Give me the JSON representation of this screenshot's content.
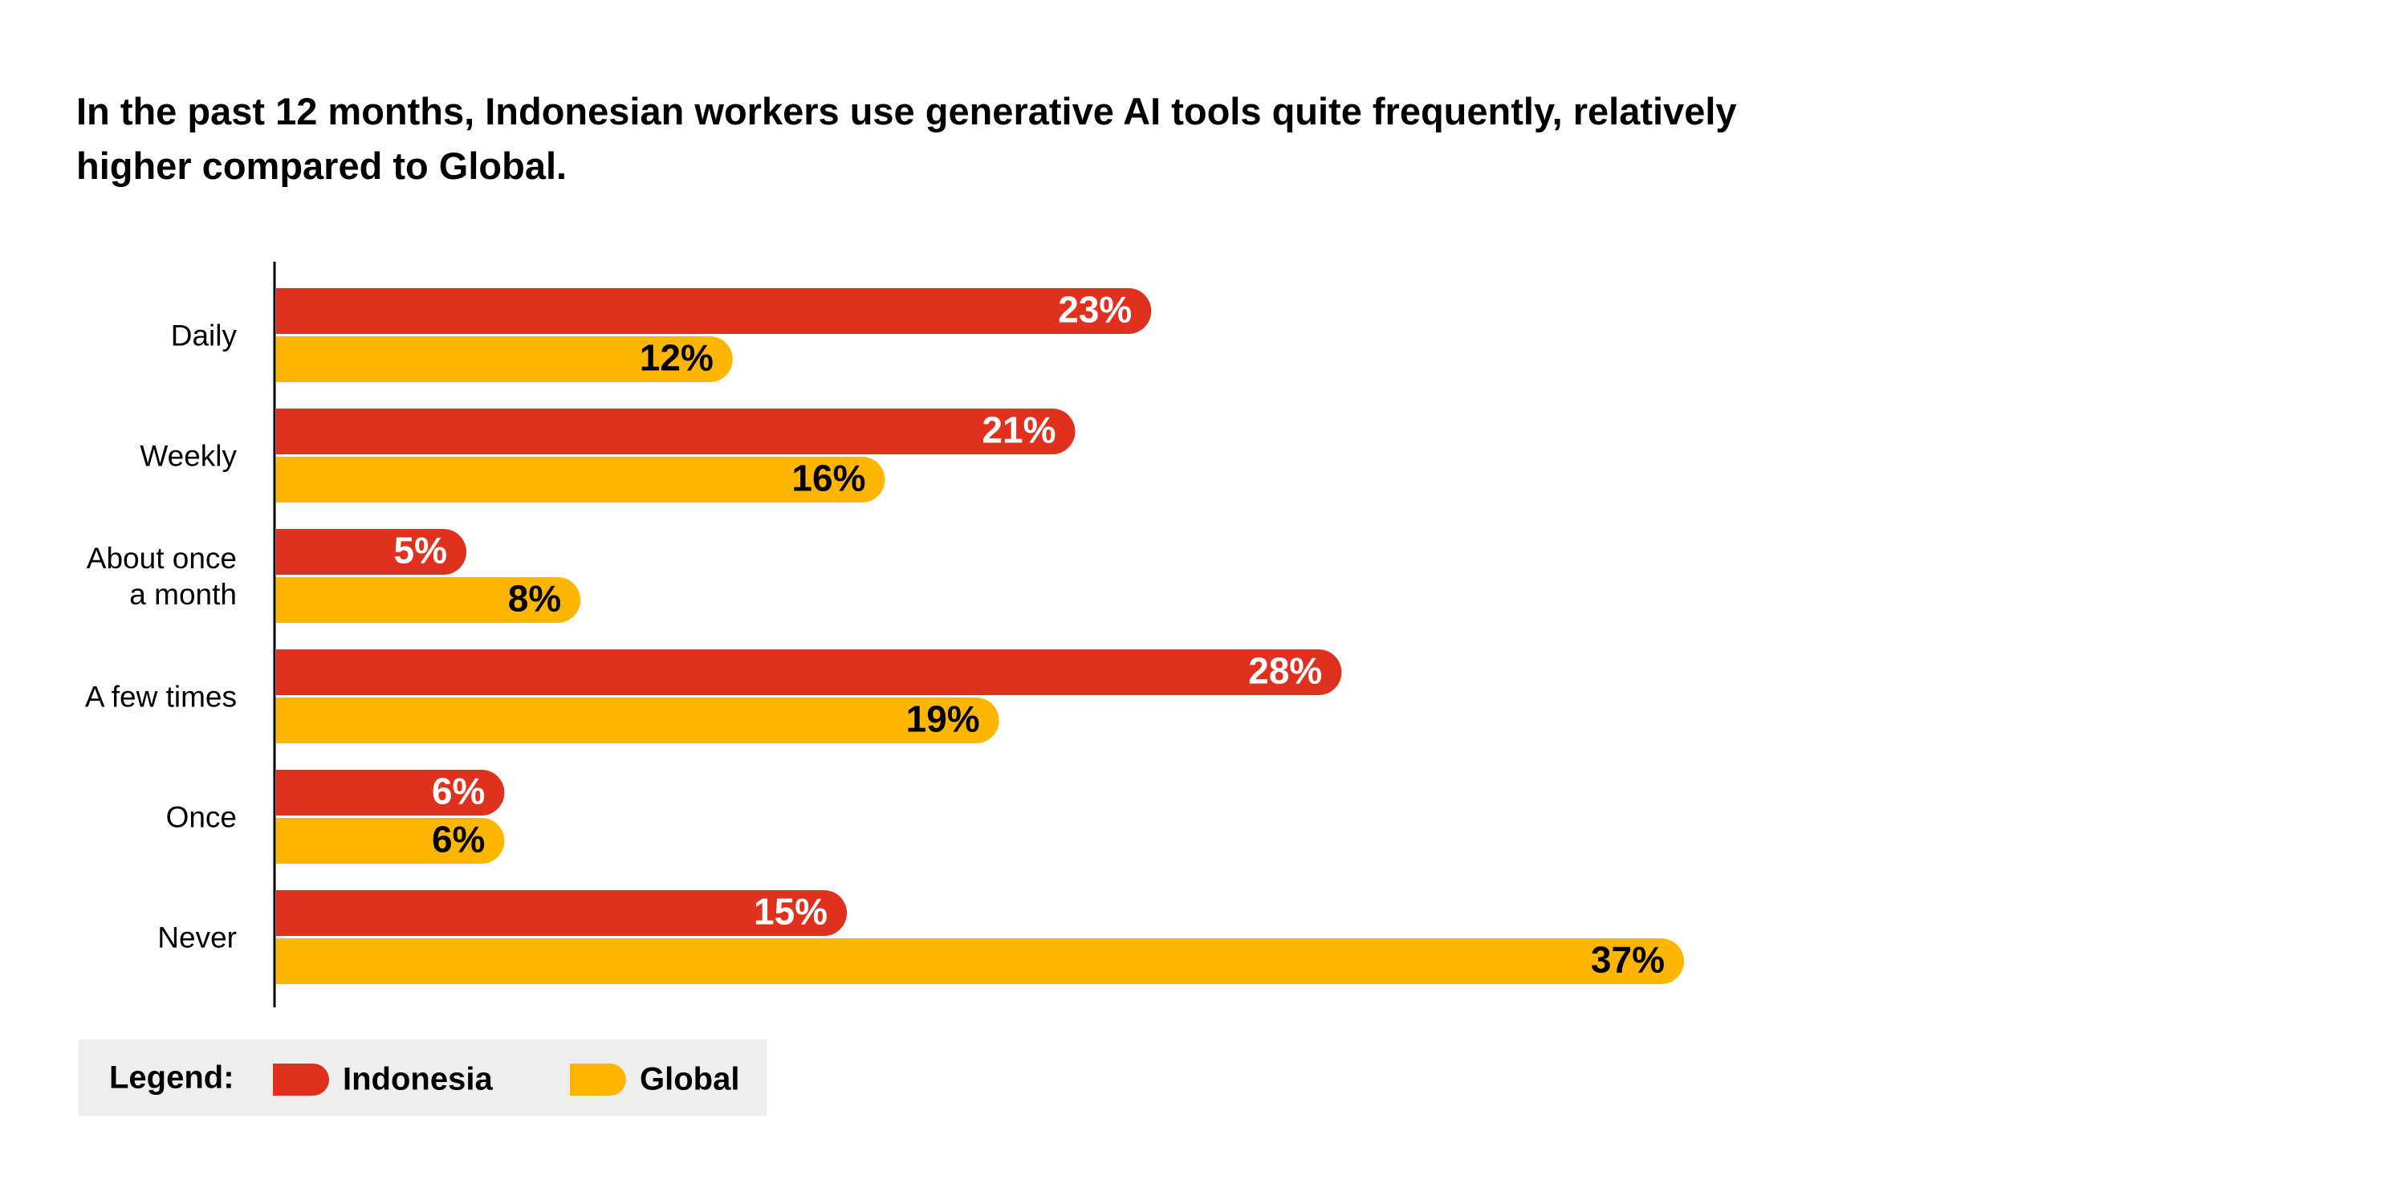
{
  "chart_data": {
    "type": "hbar",
    "title": "In the past 12 months, Indonesian workers use generative AI tools quite frequently, relatively higher compared to Global.",
    "categories": [
      "Daily",
      "Weekly",
      "About once a month",
      "A few times",
      "Once",
      "Never"
    ],
    "series": [
      {
        "name": "Indonesia",
        "color": "#e0301e",
        "label_color": "#ffffff",
        "values": [
          23,
          21,
          5,
          28,
          6,
          15
        ],
        "value_labels": [
          "23%",
          "21%",
          "5%",
          "28%",
          "6%",
          "15%"
        ]
      },
      {
        "name": "Global",
        "color": "#ffb600",
        "label_color": "#000000",
        "values": [
          12,
          16,
          8,
          19,
          6,
          37
        ],
        "value_labels": [
          "12%",
          "16%",
          "8%",
          "19%",
          "6%",
          "37%"
        ]
      }
    ],
    "legend_title": "Legend:"
  }
}
